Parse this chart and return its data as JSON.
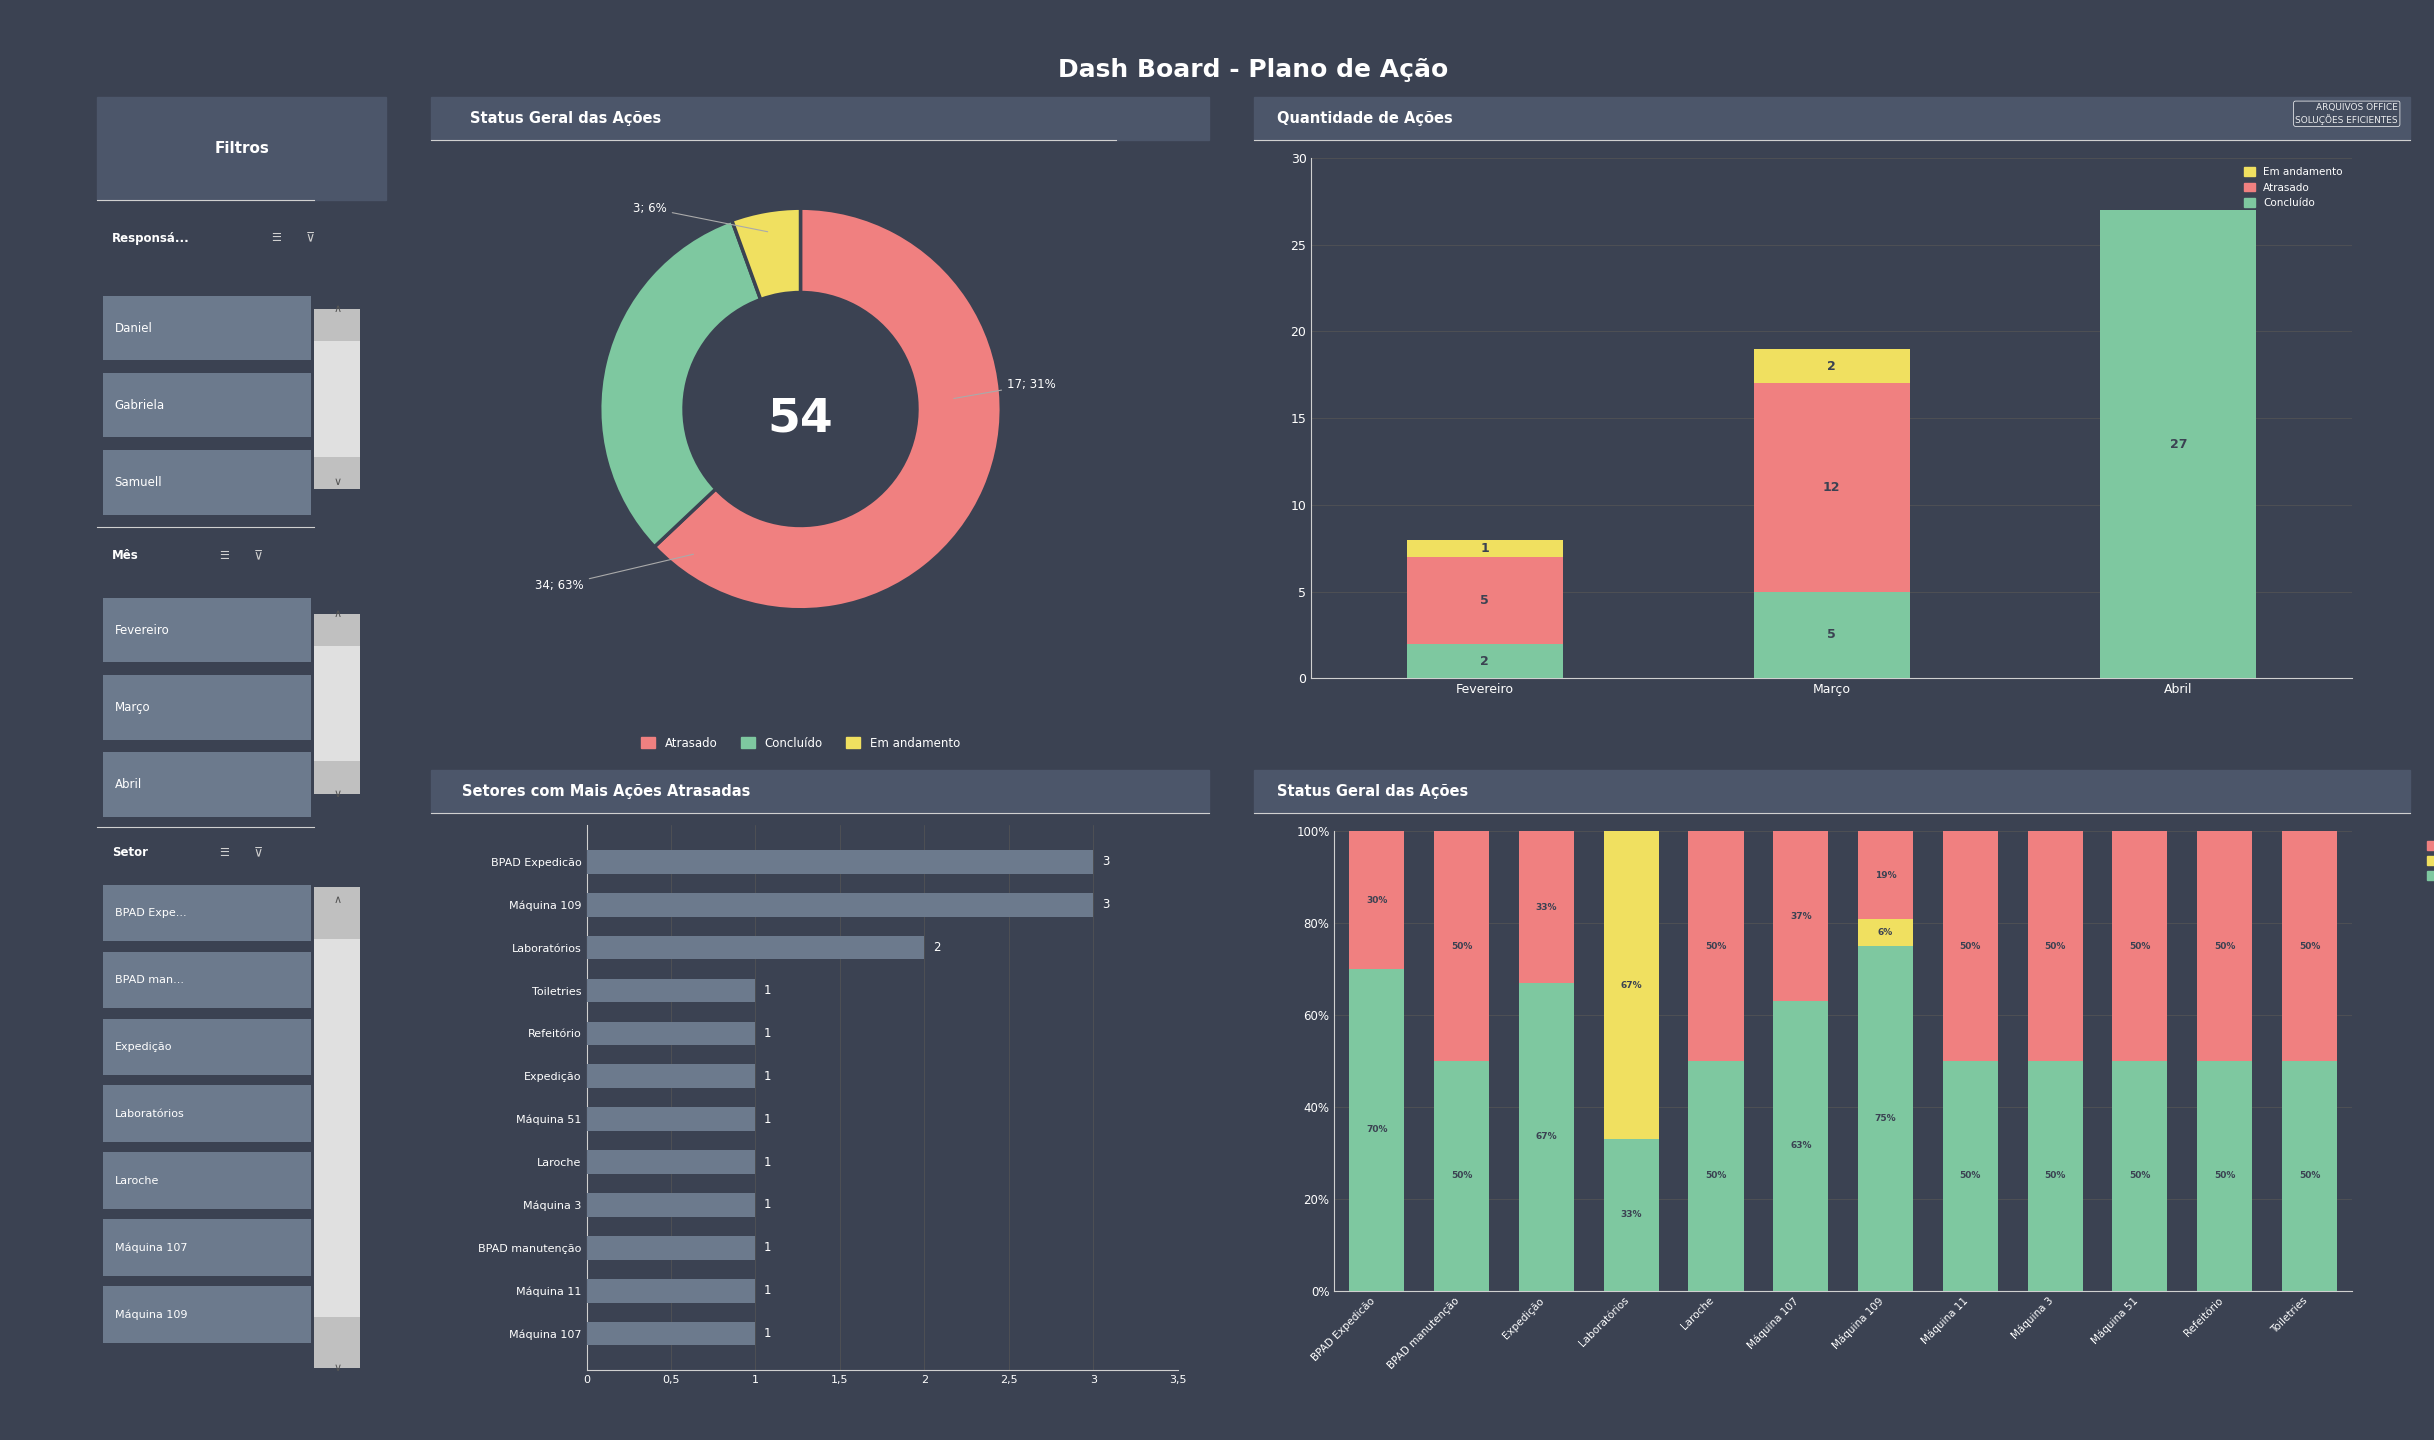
{
  "title": "Dash Board - Plano de Ação",
  "bg_dark": "#3b4252",
  "bg_panel": "#434c5e",
  "bg_header": "#4c566a",
  "bg_item": "#6c7a8d",
  "text_white": "#ffffff",
  "text_light": "#d0d0d0",
  "color_atrasado": "#f08080",
  "color_concluido": "#7ec8a0",
  "color_em_andamento": "#f0e060",
  "color_line": "#888888",
  "filtros_title": "Filtros",
  "responsavel_label": "Responsá...",
  "responsavel_items": [
    "Daniel",
    "Gabriela",
    "Samuell"
  ],
  "mes_label": "Mês",
  "mes_items": [
    "Fevereiro",
    "Março",
    "Abril"
  ],
  "setor_label": "Setor",
  "setor_items": [
    "BPAD Expe...",
    "BPAD man...",
    "Expedição",
    "Laboratórios",
    "Laroche",
    "Máquina 107",
    "Máquina 109"
  ],
  "donut_title": "Status Geral das Ações",
  "donut_values": [
    34,
    17,
    3
  ],
  "donut_labels": [
    "Atrasado",
    "Concluído",
    "Em andamento"
  ],
  "donut_percents": [
    "63%",
    "31%",
    "6%"
  ],
  "donut_colors": [
    "#f08080",
    "#7ec8a0",
    "#f0e060"
  ],
  "donut_center_text": "54",
  "donut_annotations": [
    "34; 63%",
    "17; 31%",
    "3; 6%"
  ],
  "bar1_title": "Quantidade de Ações",
  "bar1_categories": [
    "Fevereiro",
    "Março",
    "Abril"
  ],
  "bar1_concluido": [
    2,
    5,
    27
  ],
  "bar1_atrasado": [
    5,
    12,
    0
  ],
  "bar1_em_andamento": [
    1,
    2,
    0
  ],
  "bar1_ylim": [
    0,
    30
  ],
  "bar1_yticks": [
    0,
    5,
    10,
    15,
    20,
    25,
    30
  ],
  "bar2_title": "Setores com Mais Ações Atrasadas",
  "bar2_categories": [
    "BPAD Expedicão",
    "Máquina 109",
    "Laboratórios",
    "Toiletries",
    "Refeitório",
    "Expedição",
    "Máquina 51",
    "Laroche",
    "Máquina 3",
    "BPAD manutenção",
    "Máquina 11",
    "Máquina 107"
  ],
  "bar2_values": [
    3,
    3,
    2,
    1,
    1,
    1,
    1,
    1,
    1,
    1,
    1,
    1
  ],
  "bar3_title": "Status Geral das Ações",
  "bar3_categories": [
    "BPAD Expedicão",
    "BPAD manutenção",
    "Expedição",
    "Laboratórios",
    "Laroche",
    "Máquina 107",
    "Máquina 109",
    "Máquina 11",
    "Máquina 3",
    "Máquina 51",
    "Refeitório",
    "Toiletries"
  ],
  "bar3_concluido": [
    70,
    50,
    67,
    33,
    50,
    63,
    75,
    50,
    50,
    50,
    50,
    50
  ],
  "bar3_em_andamento": [
    0,
    0,
    0,
    67,
    0,
    0,
    6,
    0,
    0,
    0,
    0,
    0
  ],
  "bar3_atrasado": [
    30,
    50,
    33,
    0,
    50,
    37,
    19,
    50,
    50,
    50,
    50,
    50
  ],
  "bar3_concluido_labels": [
    "70%",
    "50%",
    "67%",
    "33%",
    "50%",
    "63%",
    "75%",
    "50%",
    "50%",
    "50%",
    "50%",
    "50%"
  ],
  "bar3_em_andamento_labels": [
    "0%",
    "0%",
    "0%",
    "67%",
    "0%",
    "0%",
    "6%",
    "0%",
    "0%",
    "0%",
    "0%",
    "0%"
  ],
  "bar3_atrasado_labels": [
    "30%",
    "50%",
    "33%",
    "0%",
    "50%",
    "37%",
    "19%",
    "50%",
    "50%",
    "50%",
    "50%",
    "50%"
  ],
  "logo_text": "ARQUIVOS OFFICE\nSOLUÇÕES EFICIENTES"
}
